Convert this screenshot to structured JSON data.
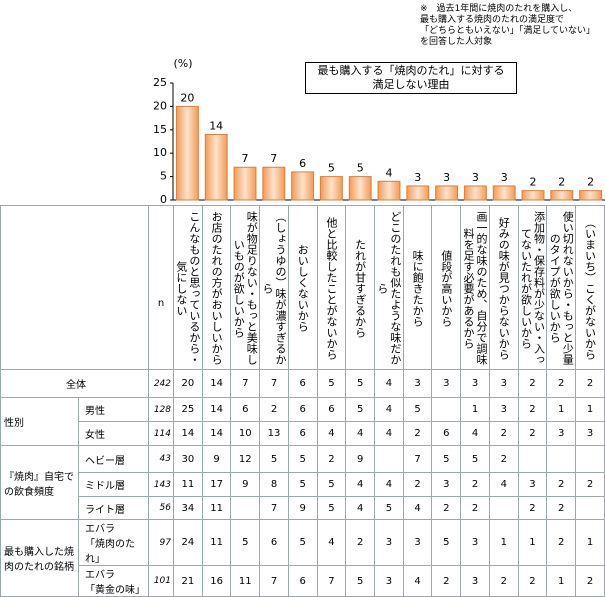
{
  "note": [
    "※　過去1年間に焼肉のたれを購入し、",
    "最も購入する焼肉のたれの満足度で",
    "「どちらともいえない」「満足していない」",
    "を回答した人対象"
  ],
  "chart_data": {
    "type": "bar",
    "title": [
      "最も購入する「焼肉のたれ」に対する",
      "満足しない理由"
    ],
    "y_label": "(%)",
    "categories": [
      "こんなものと思っているから・気にしない",
      "お店のたれの方がおいしいから",
      "味が物足りない・もっと美味しいものが欲しいから",
      "（しょうゆの）味が濃すぎるから",
      "おいしくないから",
      "他と比較したことがないから",
      "たれが甘すぎるから",
      "どこのたれも似たような味だから",
      "味に飽きたから",
      "値段が高いから",
      "画一的な味のため、自分で調味料を足す必要があるから",
      "好みの味が見つからないから",
      "添加物・保存料が少ない・入ってないたれが欲しいから",
      "使い切れないから・もっと少量のタイプが欲しいから",
      "（いまいち）こくがないから"
    ],
    "values": [
      20,
      14,
      7,
      7,
      6,
      5,
      5,
      4,
      3,
      3,
      3,
      3,
      2,
      2,
      2
    ],
    "color": "#f0a060",
    "ylim": [
      0,
      25
    ],
    "yticks": [
      0,
      5,
      10,
      15,
      20,
      25
    ]
  },
  "table": {
    "n_header": "n",
    "groups": [
      {
        "label": "全体",
        "rows": [
          {
            "n": 242,
            "values": [
              20,
              14,
              7,
              7,
              6,
              5,
              5,
              4,
              3,
              3,
              3,
              3,
              2,
              2,
              2
            ]
          }
        ]
      },
      {
        "label": "性別",
        "rows": [
          {
            "label": [
              "男性"
            ],
            "n": 128,
            "values": [
              25,
              14,
              6,
              2,
              6,
              6,
              5,
              4,
              5,
              null,
              1,
              3,
              2,
              1,
              1
            ]
          },
          {
            "label": [
              "女性"
            ],
            "n": 114,
            "values": [
              14,
              14,
              10,
              13,
              6,
              4,
              4,
              4,
              2,
              6,
              4,
              2,
              2,
              3,
              3
            ]
          }
        ]
      },
      {
        "label": "『焼肉』自宅での飲食頻度",
        "rows": [
          {
            "label": [
              "ヘビー層"
            ],
            "n": 43,
            "values": [
              30,
              9,
              12,
              5,
              5,
              2,
              9,
              null,
              7,
              5,
              5,
              2,
              null,
              null,
              null
            ]
          },
          {
            "label": [
              "ミドル層"
            ],
            "n": 143,
            "values": [
              11,
              17,
              9,
              8,
              5,
              5,
              4,
              4,
              2,
              3,
              2,
              4,
              3,
              2,
              2
            ]
          },
          {
            "label": [
              "ライト層"
            ],
            "n": 56,
            "values": [
              34,
              11,
              null,
              7,
              9,
              5,
              4,
              5,
              4,
              2,
              2,
              null,
              2,
              2,
              null
            ]
          }
        ]
      },
      {
        "label": "最も購入した焼肉のたれの銘柄",
        "rows": [
          {
            "label": [
              "エバラ",
              "「焼肉のたれ」"
            ],
            "n": 97,
            "values": [
              24,
              11,
              5,
              6,
              5,
              4,
              2,
              3,
              3,
              5,
              3,
              1,
              1,
              2,
              1
            ]
          },
          {
            "label": [
              "エバラ",
              "「黄金の味」"
            ],
            "n": 101,
            "values": [
              21,
              16,
              11,
              7,
              6,
              7,
              5,
              3,
              4,
              2,
              3,
              2,
              2,
              1,
              2
            ]
          }
        ]
      }
    ]
  }
}
